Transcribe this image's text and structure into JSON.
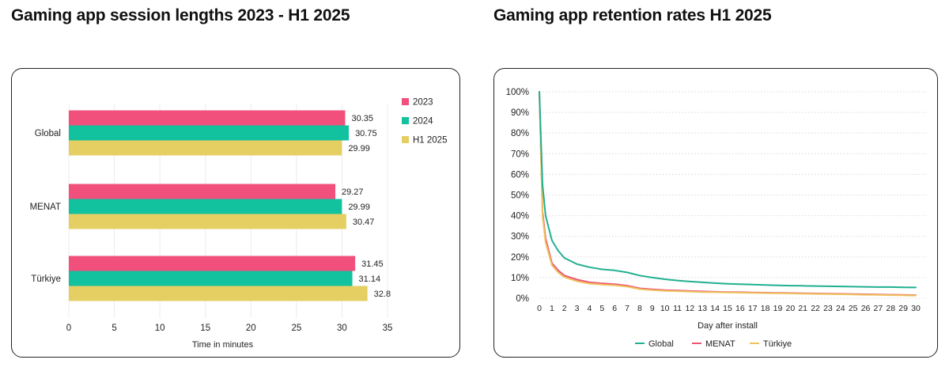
{
  "titles": {
    "left": "Gaming app session lengths 2023 - H1 2025",
    "right": "Gaming app retention rates H1 2025"
  },
  "chart_data": [
    {
      "type": "bar",
      "orientation": "horizontal",
      "title": "Gaming app session lengths 2023 - H1 2025",
      "categories": [
        "Global",
        "MENAT",
        "Türkiye"
      ],
      "series": [
        {
          "name": "2023",
          "color": "#f2507c",
          "values": [
            30.35,
            29.27,
            31.45
          ],
          "labels": [
            "30.35",
            "29.27",
            "31.45"
          ]
        },
        {
          "name": "2024",
          "color": "#12c19e",
          "values": [
            30.75,
            29.99,
            31.14
          ],
          "labels": [
            "30.75",
            "29.99",
            "31.14"
          ]
        },
        {
          "name": "H1 2025",
          "color": "#e5cf63",
          "values": [
            29.99,
            30.47,
            32.8
          ],
          "labels": [
            "29.99",
            "30.47",
            "32.8"
          ]
        }
      ],
      "xlabel": "Time in minutes",
      "xlim": [
        0,
        35
      ],
      "xticks": [
        "0",
        "5",
        "10",
        "15",
        "20",
        "25",
        "30",
        "35"
      ],
      "legend": "top-right",
      "grid": "vertical"
    },
    {
      "type": "line",
      "title": "Gaming app retention rates H1 2025",
      "x": [
        0,
        0.25,
        0.5,
        1,
        1.5,
        2,
        3,
        4,
        5,
        6,
        7,
        8,
        9,
        10,
        11,
        12,
        13,
        14,
        15,
        16,
        17,
        18,
        19,
        20,
        21,
        22,
        23,
        24,
        25,
        26,
        27,
        28,
        29,
        30
      ],
      "series": [
        {
          "name": "Global",
          "color": "#21b08f",
          "values": [
            100,
            55,
            40,
            28,
            23,
            19.5,
            16.5,
            15,
            14,
            13.5,
            12.5,
            11,
            10,
            9.2,
            8.6,
            8.1,
            7.7,
            7.3,
            7,
            6.8,
            6.6,
            6.4,
            6.2,
            6.1,
            6,
            5.9,
            5.8,
            5.7,
            5.6,
            5.5,
            5.4,
            5.4,
            5.3,
            5.2
          ]
        },
        {
          "name": "MENAT",
          "color": "#ee5473",
          "values": [
            100,
            42,
            29,
            17,
            13.5,
            11,
            9,
            7.7,
            7.2,
            6.8,
            6.1,
            4.8,
            4.3,
            3.9,
            3.7,
            3.5,
            3.3,
            3.1,
            3,
            2.9,
            2.8,
            2.7,
            2.6,
            2.5,
            2.4,
            2.3,
            2.2,
            2.1,
            2,
            1.9,
            1.8,
            1.7,
            1.6,
            1.5
          ]
        },
        {
          "name": "Türkiye",
          "color": "#eec25e",
          "values": [
            100,
            40,
            27,
            16,
            12.5,
            10.2,
            8.2,
            7.1,
            6.6,
            6.3,
            5.6,
            4.4,
            3.9,
            3.6,
            3.4,
            3.2,
            3,
            2.9,
            2.8,
            2.7,
            2.6,
            2.5,
            2.4,
            2.3,
            2.2,
            2.1,
            2,
            1.9,
            1.8,
            1.7,
            1.6,
            1.5,
            1.4,
            1.3
          ]
        }
      ],
      "xlabel": "Day after install",
      "ylabel": "",
      "xlim": [
        0,
        30
      ],
      "ylim": [
        0,
        100
      ],
      "xticks": [
        "0",
        "1",
        "2",
        "3",
        "4",
        "5",
        "6",
        "7",
        "8",
        "9",
        "10",
        "11",
        "12",
        "13",
        "14",
        "15",
        "16",
        "17",
        "18",
        "19",
        "20",
        "21",
        "22",
        "23",
        "24",
        "25",
        "26",
        "27",
        "28",
        "29",
        "30"
      ],
      "yticks": [
        "0%",
        "10%",
        "20%",
        "30%",
        "40%",
        "50%",
        "60%",
        "70%",
        "80%",
        "90%",
        "100%"
      ],
      "legend": "bottom-center",
      "grid": "horizontal-dotted"
    }
  ]
}
